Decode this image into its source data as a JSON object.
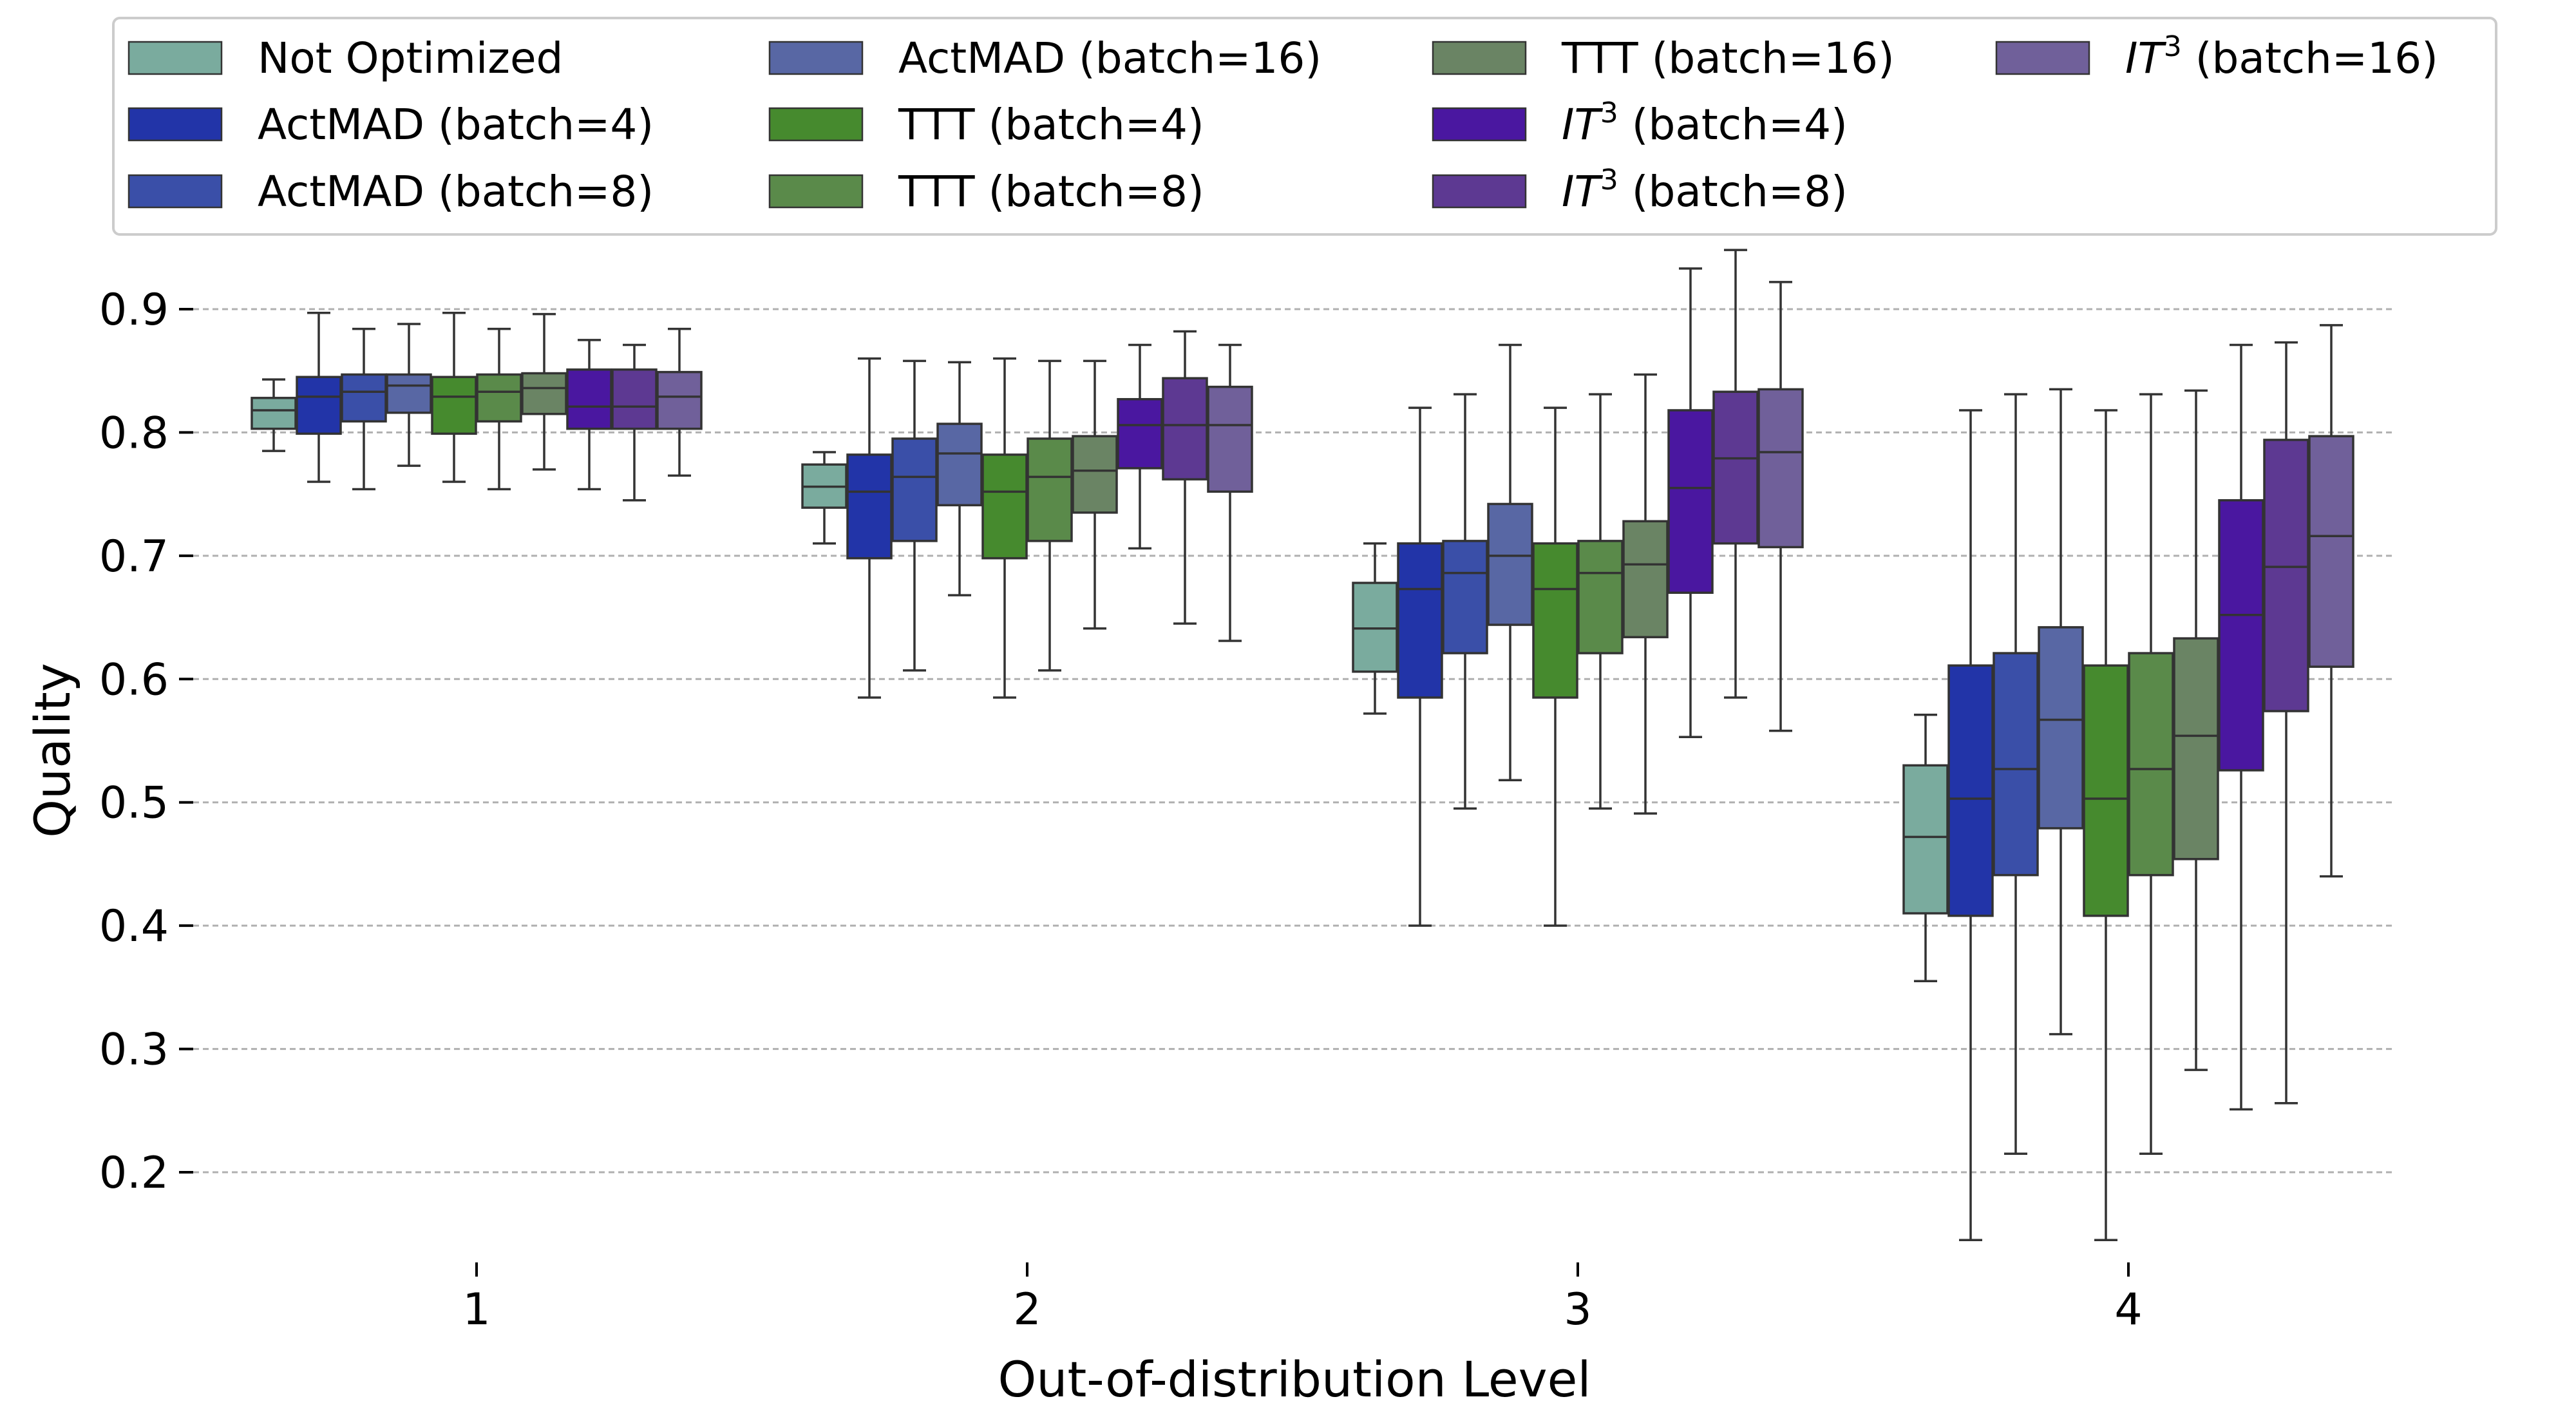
{
  "chart_data": {
    "type": "box",
    "title": "",
    "xlabel": "Out-of-distribution Level",
    "ylabel": "Quality",
    "categories": [
      "1",
      "2",
      "3",
      "4"
    ],
    "ylim": [
      0.12,
      0.95
    ],
    "yticks": [
      0.2,
      0.3,
      0.4,
      0.5,
      0.6,
      0.7,
      0.8,
      0.9
    ],
    "ytick_labels": [
      "0.2",
      "0.3",
      "0.4",
      "0.5",
      "0.6",
      "0.7",
      "0.8",
      "0.9"
    ],
    "grid": "horizontal dashed",
    "legend": "top",
    "series": [
      {
        "name": "Not Optimized",
        "color": "#7aab9e",
        "boxes": [
          {
            "whislo": 0.785,
            "q1": 0.803,
            "med": 0.818,
            "q3": 0.828,
            "whishi": 0.843
          },
          {
            "whislo": 0.71,
            "q1": 0.739,
            "med": 0.756,
            "q3": 0.774,
            "whishi": 0.784
          },
          {
            "whislo": 0.572,
            "q1": 0.606,
            "med": 0.641,
            "q3": 0.678,
            "whishi": 0.71
          },
          {
            "whislo": 0.355,
            "q1": 0.41,
            "med": 0.472,
            "q3": 0.53,
            "whishi": 0.571
          }
        ]
      },
      {
        "name": "ActMAD (batch=4)",
        "color": "#2234a8",
        "boxes": [
          {
            "whislo": 0.76,
            "q1": 0.799,
            "med": 0.829,
            "q3": 0.845,
            "whishi": 0.897
          },
          {
            "whislo": 0.585,
            "q1": 0.698,
            "med": 0.752,
            "q3": 0.782,
            "whishi": 0.86
          },
          {
            "whislo": 0.4,
            "q1": 0.585,
            "med": 0.673,
            "q3": 0.71,
            "whishi": 0.82
          },
          {
            "whislo": 0.145,
            "q1": 0.408,
            "med": 0.503,
            "q3": 0.611,
            "whishi": 0.818
          }
        ]
      },
      {
        "name": "ActMAD (batch=8)",
        "color": "#3a4fa8",
        "boxes": [
          {
            "whislo": 0.754,
            "q1": 0.809,
            "med": 0.833,
            "q3": 0.847,
            "whishi": 0.884
          },
          {
            "whislo": 0.607,
            "q1": 0.712,
            "med": 0.764,
            "q3": 0.795,
            "whishi": 0.858
          },
          {
            "whislo": 0.495,
            "q1": 0.621,
            "med": 0.686,
            "q3": 0.712,
            "whishi": 0.831
          },
          {
            "whislo": 0.215,
            "q1": 0.441,
            "med": 0.527,
            "q3": 0.621,
            "whishi": 0.831
          }
        ]
      },
      {
        "name": "ActMAD (batch=16)",
        "color": "#5867a4",
        "boxes": [
          {
            "whislo": 0.773,
            "q1": 0.816,
            "med": 0.838,
            "q3": 0.847,
            "whishi": 0.888
          },
          {
            "whislo": 0.668,
            "q1": 0.741,
            "med": 0.783,
            "q3": 0.807,
            "whishi": 0.857
          },
          {
            "whislo": 0.518,
            "q1": 0.644,
            "med": 0.7,
            "q3": 0.742,
            "whishi": 0.871
          },
          {
            "whislo": 0.312,
            "q1": 0.479,
            "med": 0.567,
            "q3": 0.642,
            "whishi": 0.835
          }
        ]
      },
      {
        "name": "TTT (batch=4)",
        "color": "#468a2e",
        "boxes": [
          {
            "whislo": 0.76,
            "q1": 0.799,
            "med": 0.829,
            "q3": 0.845,
            "whishi": 0.897
          },
          {
            "whislo": 0.585,
            "q1": 0.698,
            "med": 0.752,
            "q3": 0.782,
            "whishi": 0.86
          },
          {
            "whislo": 0.4,
            "q1": 0.585,
            "med": 0.673,
            "q3": 0.71,
            "whishi": 0.82
          },
          {
            "whislo": 0.145,
            "q1": 0.408,
            "med": 0.503,
            "q3": 0.611,
            "whishi": 0.818
          }
        ]
      },
      {
        "name": "TTT (batch=8)",
        "color": "#5a8a4a",
        "boxes": [
          {
            "whislo": 0.754,
            "q1": 0.809,
            "med": 0.833,
            "q3": 0.847,
            "whishi": 0.884
          },
          {
            "whislo": 0.607,
            "q1": 0.712,
            "med": 0.764,
            "q3": 0.795,
            "whishi": 0.858
          },
          {
            "whislo": 0.495,
            "q1": 0.621,
            "med": 0.686,
            "q3": 0.712,
            "whishi": 0.831
          },
          {
            "whislo": 0.215,
            "q1": 0.441,
            "med": 0.527,
            "q3": 0.621,
            "whishi": 0.831
          }
        ]
      },
      {
        "name": "TTT (batch=16)",
        "color": "#6a8464",
        "boxes": [
          {
            "whislo": 0.77,
            "q1": 0.815,
            "med": 0.836,
            "q3": 0.848,
            "whishi": 0.896
          },
          {
            "whislo": 0.641,
            "q1": 0.735,
            "med": 0.769,
            "q3": 0.797,
            "whishi": 0.858
          },
          {
            "whislo": 0.491,
            "q1": 0.634,
            "med": 0.693,
            "q3": 0.728,
            "whishi": 0.847
          },
          {
            "whislo": 0.283,
            "q1": 0.454,
            "med": 0.554,
            "q3": 0.633,
            "whishi": 0.834
          }
        ]
      },
      {
        "name": "IT3 (batch=4)",
        "name_base": "IT",
        "name_sup": "3",
        "name_suffix": " (batch=4)",
        "color": "#4a17a0",
        "boxes": [
          {
            "whislo": 0.754,
            "q1": 0.803,
            "med": 0.821,
            "q3": 0.851,
            "whishi": 0.875
          },
          {
            "whislo": 0.706,
            "q1": 0.771,
            "med": 0.806,
            "q3": 0.827,
            "whishi": 0.871
          },
          {
            "whislo": 0.553,
            "q1": 0.67,
            "med": 0.755,
            "q3": 0.818,
            "whishi": 0.933
          },
          {
            "whislo": 0.251,
            "q1": 0.526,
            "med": 0.652,
            "q3": 0.745,
            "whishi": 0.871
          }
        ]
      },
      {
        "name": "IT3 (batch=8)",
        "name_base": "IT",
        "name_sup": "3",
        "name_suffix": " (batch=8)",
        "color": "#5d3992",
        "boxes": [
          {
            "whislo": 0.745,
            "q1": 0.803,
            "med": 0.821,
            "q3": 0.851,
            "whishi": 0.871
          },
          {
            "whislo": 0.645,
            "q1": 0.762,
            "med": 0.806,
            "q3": 0.844,
            "whishi": 0.882
          },
          {
            "whislo": 0.585,
            "q1": 0.71,
            "med": 0.779,
            "q3": 0.833,
            "whishi": 0.948
          },
          {
            "whislo": 0.256,
            "q1": 0.574,
            "med": 0.691,
            "q3": 0.794,
            "whishi": 0.873
          }
        ]
      },
      {
        "name": "IT3 (batch=16)",
        "name_base": "IT",
        "name_sup": "3",
        "name_suffix": " (batch=16)",
        "color": "#70609a",
        "boxes": [
          {
            "whislo": 0.765,
            "q1": 0.803,
            "med": 0.829,
            "q3": 0.849,
            "whishi": 0.884
          },
          {
            "whislo": 0.631,
            "q1": 0.752,
            "med": 0.806,
            "q3": 0.837,
            "whishi": 0.871
          },
          {
            "whislo": 0.558,
            "q1": 0.707,
            "med": 0.784,
            "q3": 0.835,
            "whishi": 0.922
          },
          {
            "whislo": 0.44,
            "q1": 0.61,
            "med": 0.716,
            "q3": 0.797,
            "whishi": 0.887
          }
        ]
      }
    ]
  }
}
